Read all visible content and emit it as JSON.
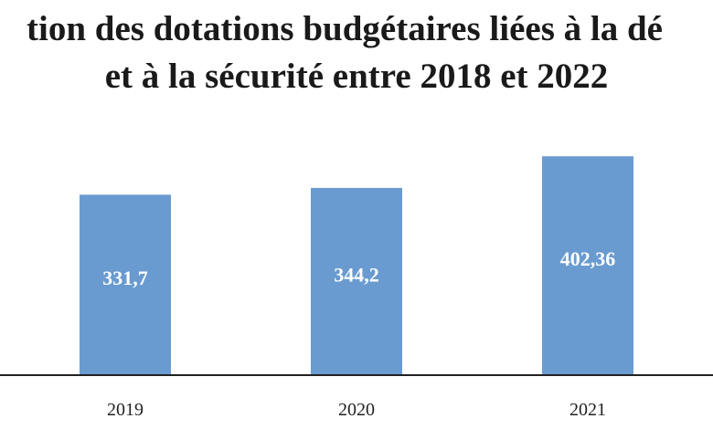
{
  "chart_data": {
    "type": "bar",
    "title_lines": [
      "tion des dotations budgétaires liées à la dé",
      "et à la sécurité entre 2018 et 2022"
    ],
    "categories": [
      "2019",
      "2020",
      "2021"
    ],
    "values": [
      331.7,
      344.2,
      402.36
    ],
    "value_labels": [
      "331,7",
      "344,2",
      "402,36"
    ],
    "xlabel": "",
    "ylabel": "",
    "ylim": [
      0,
      443
    ],
    "grid": false,
    "legend": "none",
    "bar_color": "#6a9bd0",
    "axis_color": "#222222",
    "label_color": "#ffffff"
  }
}
